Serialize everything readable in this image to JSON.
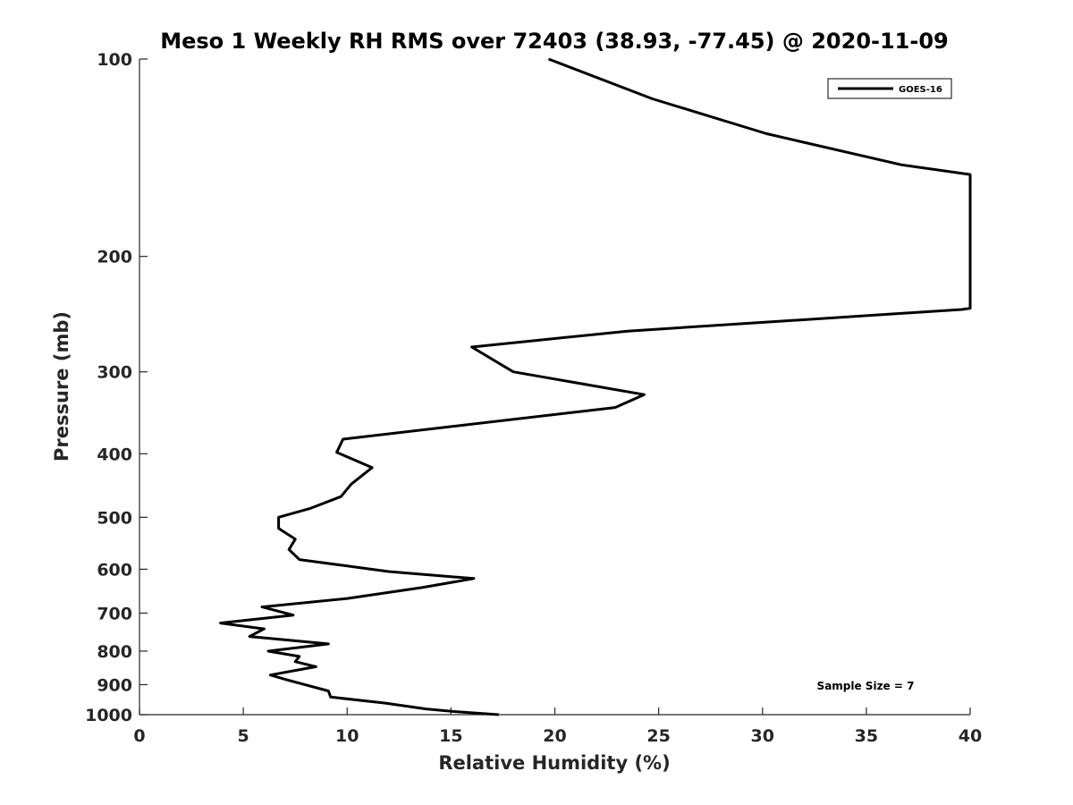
{
  "chart_data": {
    "type": "line",
    "title": "Meso 1 Weekly RH RMS over 72403 (38.93, -77.45) @ 2020-11-09",
    "xlabel": "Relative Humidity (%)",
    "ylabel": "Pressure (mb)",
    "xlim": [
      0,
      40
    ],
    "ylim": [
      1000,
      100
    ],
    "y_scale": "log",
    "y_reversed": true,
    "grid": false,
    "legend_position": "top-right",
    "x_ticks": [
      0,
      5,
      10,
      15,
      20,
      25,
      30,
      35,
      40
    ],
    "y_ticks": [
      100,
      200,
      300,
      400,
      500,
      600,
      700,
      800,
      900,
      1000
    ],
    "series": [
      {
        "name": "GOES-16",
        "color": "#000000",
        "points": [
          [
            19.7,
            100
          ],
          [
            24.7,
            115
          ],
          [
            30.2,
            130
          ],
          [
            36.7,
            145
          ],
          [
            40,
            150
          ],
          [
            40,
            240
          ],
          [
            39.6,
            241
          ],
          [
            23.5,
            260
          ],
          [
            16.0,
            275
          ],
          [
            18.0,
            300
          ],
          [
            24.3,
            325
          ],
          [
            22.9,
            340
          ],
          [
            9.8,
            380
          ],
          [
            9.5,
            398
          ],
          [
            11.2,
            420
          ],
          [
            10.2,
            445
          ],
          [
            9.7,
            465
          ],
          [
            8.2,
            485
          ],
          [
            6.7,
            500
          ],
          [
            6.7,
            520
          ],
          [
            7.5,
            540
          ],
          [
            7.2,
            560
          ],
          [
            7.7,
            580
          ],
          [
            12.0,
            605
          ],
          [
            16.1,
            620
          ],
          [
            13.6,
            640
          ],
          [
            10.0,
            665
          ],
          [
            5.9,
            685
          ],
          [
            7.4,
            705
          ],
          [
            3.9,
            725
          ],
          [
            6.0,
            740
          ],
          [
            5.3,
            760
          ],
          [
            9.1,
            780
          ],
          [
            6.2,
            800
          ],
          [
            7.7,
            815
          ],
          [
            7.5,
            830
          ],
          [
            8.5,
            845
          ],
          [
            6.3,
            870
          ],
          [
            7.1,
            885
          ],
          [
            9.1,
            920
          ],
          [
            9.2,
            940
          ],
          [
            11.8,
            960
          ],
          [
            13.8,
            980
          ],
          [
            15.3,
            990
          ],
          [
            17.3,
            1000
          ]
        ]
      }
    ],
    "annotations": [
      {
        "text": "Sample Size = 7"
      }
    ]
  }
}
